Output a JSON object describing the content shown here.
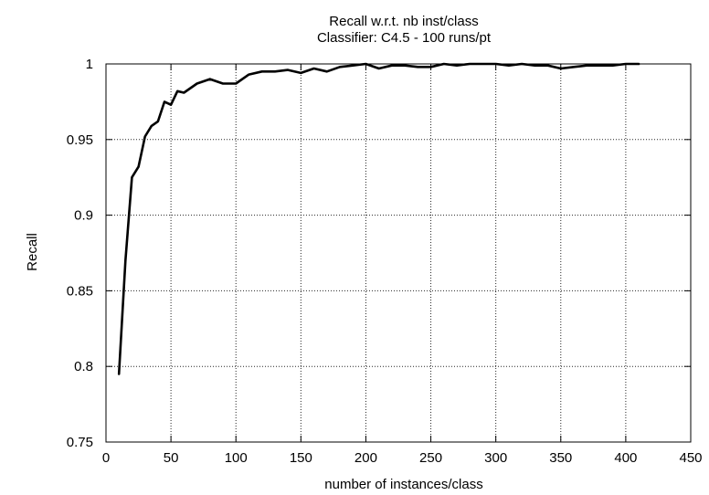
{
  "chart_data": {
    "type": "line",
    "title": "Recall  w.r.t. nb inst/class",
    "subtitle": "Classifier: C4.5 - 100 runs/pt",
    "xlabel": "number of instances/class",
    "ylabel": "Recall",
    "xlim": [
      0,
      450
    ],
    "ylim": [
      0.75,
      1
    ],
    "x_ticks": [
      "0",
      "50",
      "100",
      "150",
      "200",
      "250",
      "300",
      "350",
      "400",
      "450"
    ],
    "y_ticks": [
      "0.75",
      "0.8",
      "0.85",
      "0.9",
      "0.95",
      "1"
    ],
    "grid": true,
    "legend": "none",
    "series": [
      {
        "color": "#000000",
        "x": [
          10,
          15,
          20,
          25,
          30,
          35,
          40,
          45,
          50,
          55,
          60,
          70,
          80,
          90,
          100,
          110,
          120,
          130,
          140,
          150,
          160,
          170,
          180,
          190,
          200,
          210,
          220,
          230,
          240,
          250,
          260,
          270,
          280,
          290,
          300,
          310,
          320,
          330,
          340,
          350,
          360,
          370,
          380,
          390,
          400,
          410
        ],
        "y": [
          0.795,
          0.87,
          0.925,
          0.932,
          0.952,
          0.959,
          0.962,
          0.975,
          0.973,
          0.982,
          0.981,
          0.987,
          0.99,
          0.987,
          0.987,
          0.993,
          0.995,
          0.995,
          0.996,
          0.994,
          0.997,
          0.995,
          0.998,
          0.999,
          1.0,
          0.997,
          0.999,
          0.999,
          0.998,
          0.998,
          1.0,
          0.999,
          1.0,
          1.0,
          1.0,
          0.999,
          1.0,
          0.999,
          0.999,
          0.997,
          0.998,
          0.999,
          0.999,
          0.999,
          1.0,
          1.0
        ]
      }
    ]
  }
}
